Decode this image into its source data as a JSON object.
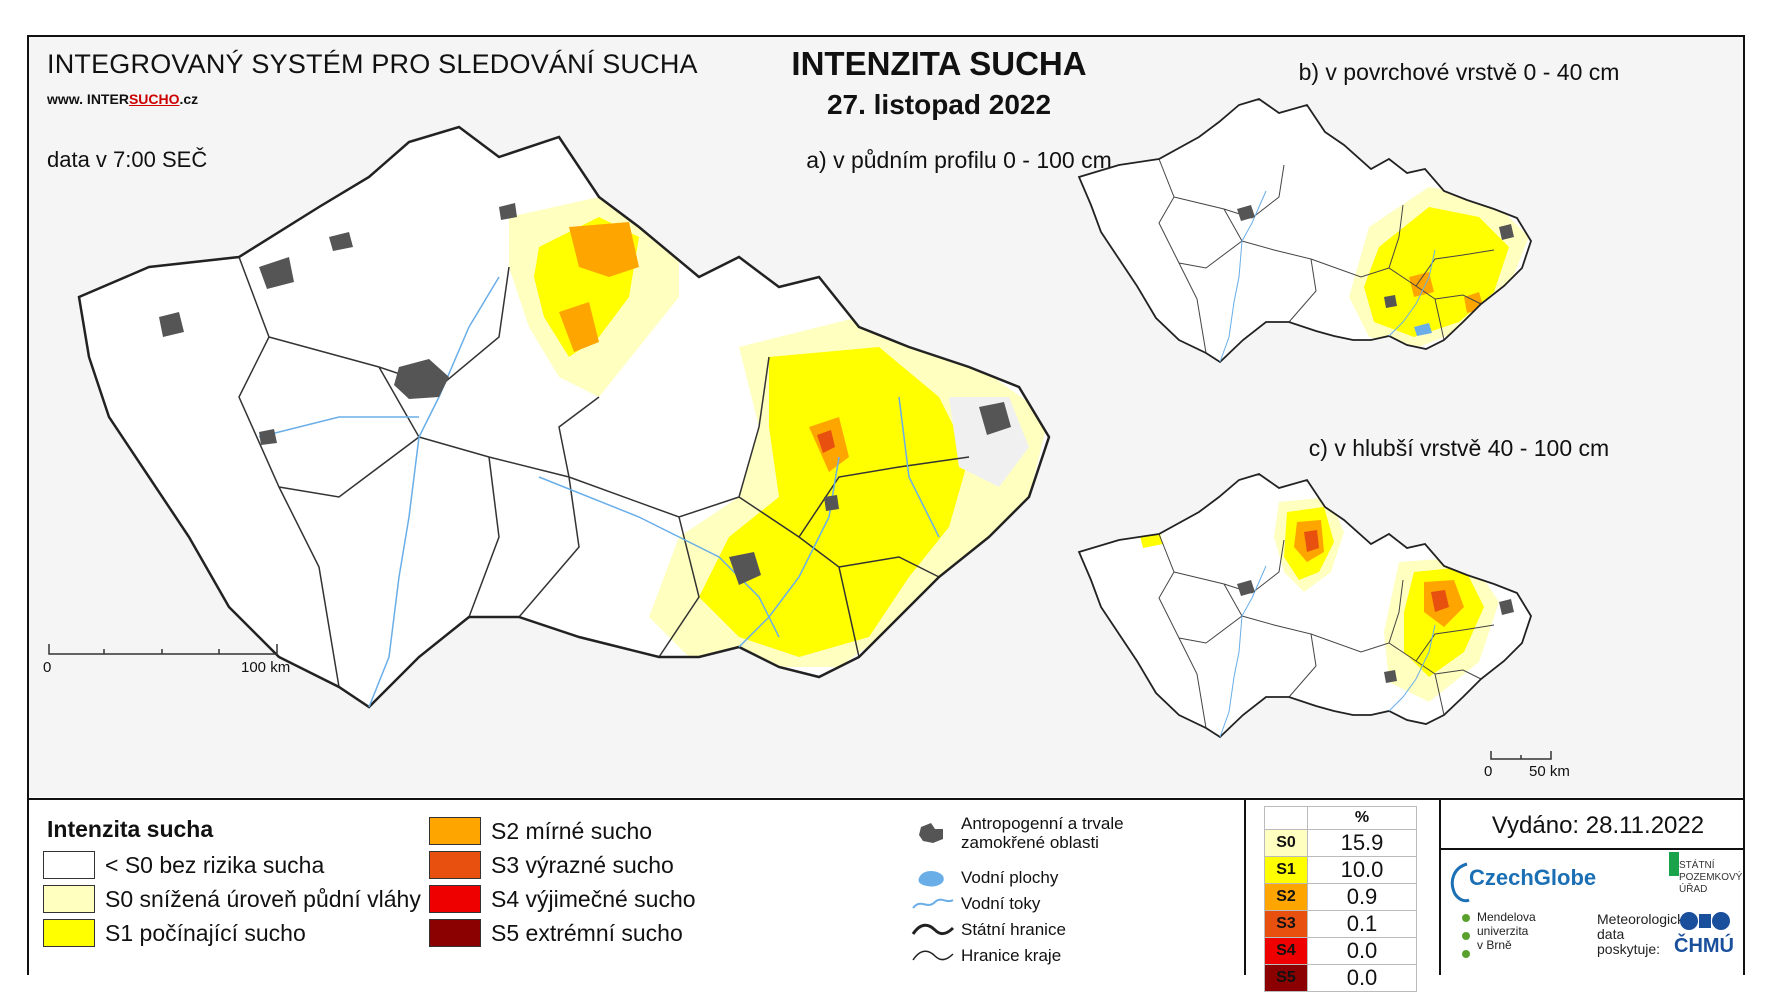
{
  "header": {
    "system_title": "INTEGROVANÝ SYSTÉM PRO SLEDOVÁNÍ SUCHA",
    "website_prefix": "www. INTER",
    "website_highlight": "SUCHO",
    "website_suffix": ".cz",
    "data_time": "data v 7:00 SEČ",
    "main_title": "INTENZITA SUCHA",
    "date": "27. listopad 2022"
  },
  "maps": {
    "a_label": "a) v půdním profilu 0 - 100 cm",
    "b_label": "b) v povrchové vrstvě 0 - 40 cm",
    "c_label": "c) v hlubší vrstvě 40 - 100 cm",
    "scale_main": {
      "start": "0",
      "end": "100 km"
    },
    "scale_small": {
      "start": "0",
      "end": "50 km"
    }
  },
  "legend": {
    "title": "Intenzita sucha",
    "classes": [
      {
        "label": "< S0 bez rizika sucha",
        "color": "#ffffff"
      },
      {
        "label": "S0 snížená úroveň půdní vláhy",
        "color": "#ffffc0"
      },
      {
        "label": "S1 počínající sucho",
        "color": "#ffff00"
      },
      {
        "label": "S2 mírné sucho",
        "color": "#ffa500"
      },
      {
        "label": "S3 výrazné sucho",
        "color": "#e85010"
      },
      {
        "label": "S4 výjimečné sucho",
        "color": "#ee0000"
      },
      {
        "label": "S5 extrémní sucho",
        "color": "#8b0000"
      }
    ]
  },
  "symbols": [
    {
      "label": "Antropogenní a trvale\nzamokřené oblasti",
      "icon": "urban-area-icon"
    },
    {
      "label": "Vodní plochy",
      "icon": "water-body-icon"
    },
    {
      "label": "Vodní toky",
      "icon": "river-icon"
    },
    {
      "label": "Státní hranice",
      "icon": "state-border-icon"
    },
    {
      "label": "Hranice kraje",
      "icon": "region-border-icon"
    }
  ],
  "percent_table": {
    "header": "%",
    "rows": [
      {
        "code": "S0",
        "value": "15.9",
        "color": "#ffffc0"
      },
      {
        "code": "S1",
        "value": "10.0",
        "color": "#ffff00"
      },
      {
        "code": "S2",
        "value": "0.9",
        "color": "#ffa500"
      },
      {
        "code": "S3",
        "value": "0.1",
        "color": "#e85010"
      },
      {
        "code": "S4",
        "value": "0.0",
        "color": "#ee0000"
      },
      {
        "code": "S5",
        "value": "0.0",
        "color": "#8b0000"
      }
    ]
  },
  "issued": "Vydáno: 28.11.2022",
  "logos": {
    "czechglobe": "CzechGlobe",
    "spu": "STÁTNÍ\nPOZEMKOVÝ\nÚŘAD",
    "mendel": "Mendelova\nuniverzita\nv Brně",
    "met_data": "Meteorologická\ndata\nposkytuje:",
    "chmu": "ČHMÚ"
  }
}
